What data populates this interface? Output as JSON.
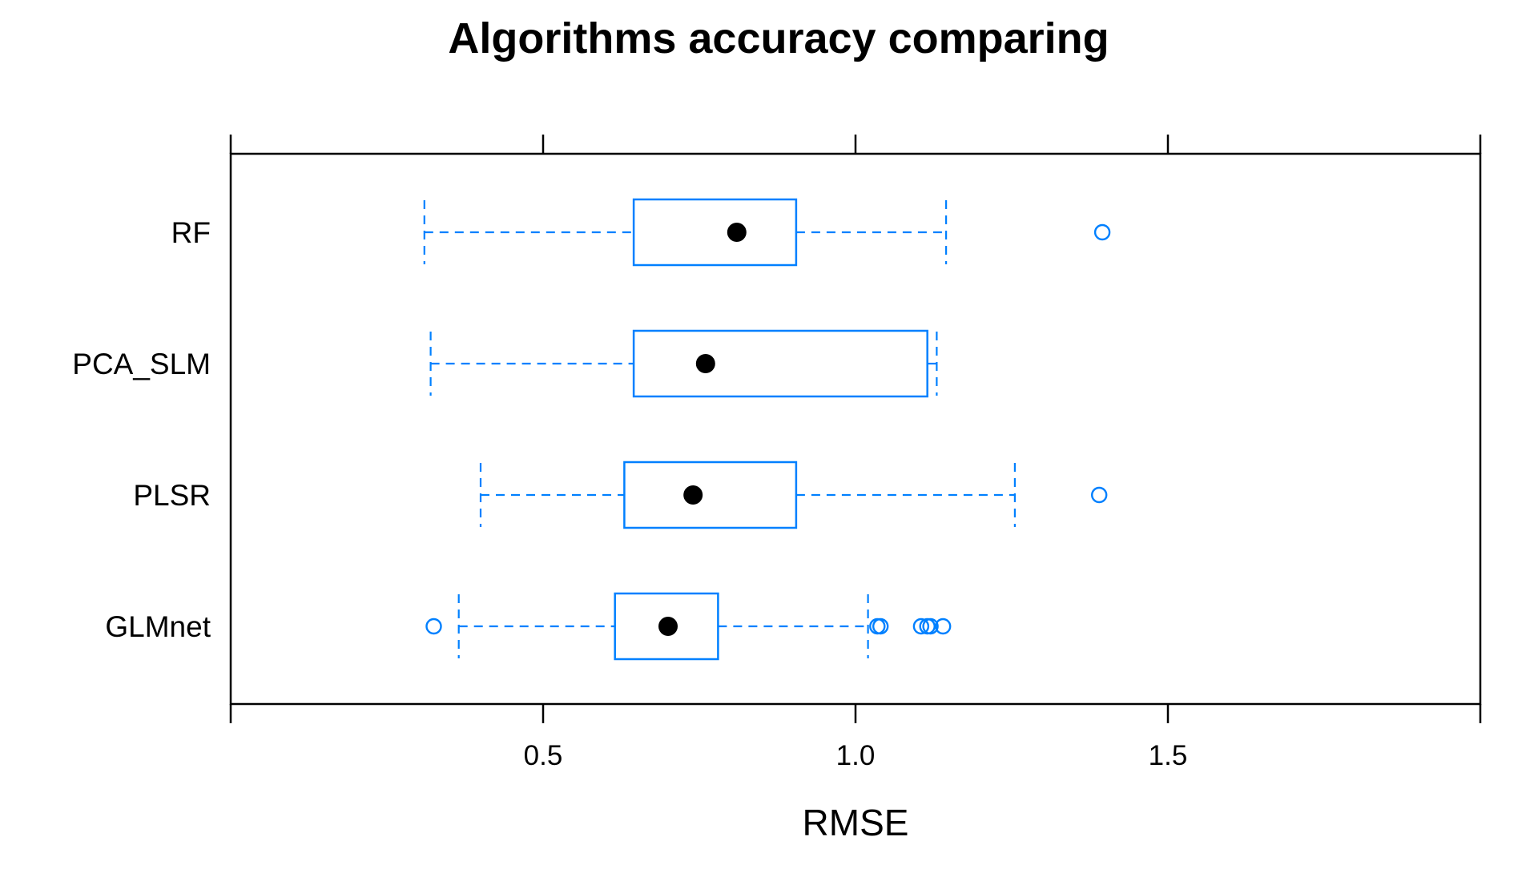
{
  "chart_data": {
    "type": "boxplot",
    "orientation": "horizontal",
    "title": "Algorithms accuracy comparing",
    "xlabel": "RMSE",
    "ylabel": "",
    "xlim": [
      0.0,
      2.0
    ],
    "x_ticks": [
      0.5,
      1.0,
      1.5
    ],
    "x_tick_labels": [
      "0.5",
      "1.0",
      "1.5"
    ],
    "grid": false,
    "legend": false,
    "box_color": "#0080ff",
    "median_color": "#000000",
    "axis_color": "#000000",
    "categories": [
      "RF",
      "PCA_SLM",
      "PLSR",
      "GLMnet"
    ],
    "boxes": [
      {
        "name": "RF",
        "whisker_low": 0.31,
        "q1": 0.645,
        "median": 0.81,
        "q3": 0.905,
        "whisker_high": 1.145,
        "outliers": [
          1.395
        ]
      },
      {
        "name": "PCA_SLM",
        "whisker_low": 0.32,
        "q1": 0.645,
        "median": 0.76,
        "q3": 1.115,
        "whisker_high": 1.13,
        "outliers": []
      },
      {
        "name": "PLSR",
        "whisker_low": 0.4,
        "q1": 0.63,
        "median": 0.74,
        "q3": 0.905,
        "whisker_high": 1.255,
        "outliers": [
          1.39
        ]
      },
      {
        "name": "GLMnet",
        "whisker_low": 0.365,
        "q1": 0.615,
        "median": 0.7,
        "q3": 0.78,
        "whisker_high": 1.02,
        "outliers": [
          0.325,
          1.035,
          1.04,
          1.105,
          1.115,
          1.12,
          1.14
        ]
      }
    ]
  }
}
